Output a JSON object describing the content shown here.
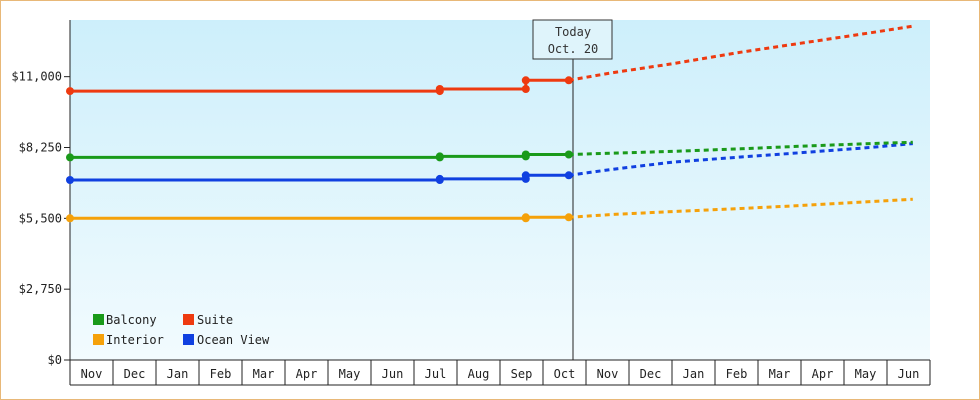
{
  "chart_data": {
    "type": "line",
    "title": "",
    "xlabel": "",
    "ylabel": "",
    "ylim": [
      0,
      13200
    ],
    "yticks": [
      "$0",
      "$2,750",
      "$5,500",
      "$8,250",
      "$11,000"
    ],
    "ytick_values": [
      0,
      2750,
      5500,
      8250,
      11000
    ],
    "months": [
      "Nov",
      "Dec",
      "Jan",
      "Feb",
      "Mar",
      "Apr",
      "May",
      "Jun",
      "Jul",
      "Aug",
      "Sep",
      "Oct",
      "Nov",
      "Dec",
      "Jan",
      "Feb",
      "Mar",
      "Apr",
      "May",
      "Jun"
    ],
    "today_marker": {
      "line1": "Today",
      "line2": "Oct. 20",
      "month_index": 11.0
    },
    "grid": false,
    "legend_position": "bottom-left",
    "series": [
      {
        "name": "Balcony",
        "color": "#1a9a1a",
        "actual": [
          [
            0,
            7866
          ],
          [
            8.6,
            7866
          ],
          [
            8.6,
            7904
          ],
          [
            10.6,
            7904
          ],
          [
            10.6,
            7980
          ],
          [
            11.6,
            7980
          ]
        ],
        "markers": [
          0,
          8.6,
          10.6,
          11.6
        ],
        "forecast": [
          [
            11.6,
            7980
          ],
          [
            12.6,
            8030
          ],
          [
            14.0,
            8100
          ],
          [
            15.6,
            8200
          ],
          [
            17.0,
            8300
          ],
          [
            18.6,
            8400
          ],
          [
            19.6,
            8450
          ]
        ]
      },
      {
        "name": "Suite",
        "color": "#ee3a10",
        "actual": [
          [
            0,
            10438
          ],
          [
            8.6,
            10438
          ],
          [
            8.6,
            10520
          ],
          [
            10.6,
            10520
          ],
          [
            10.6,
            10860
          ],
          [
            11.6,
            10860
          ]
        ],
        "markers": [
          0,
          8.6,
          10.6,
          11.6
        ],
        "forecast": [
          [
            11.6,
            10860
          ],
          [
            12.6,
            11150
          ],
          [
            14.0,
            11500
          ],
          [
            15.6,
            11950
          ],
          [
            17.0,
            12300
          ],
          [
            18.6,
            12700
          ],
          [
            19.6,
            12960
          ]
        ]
      },
      {
        "name": "Interior",
        "color": "#f5a10a",
        "actual": [
          [
            0,
            5500
          ],
          [
            10.6,
            5500
          ],
          [
            10.6,
            5540
          ],
          [
            11.6,
            5540
          ]
        ],
        "markers": [
          0,
          10.6,
          11.6
        ],
        "forecast": [
          [
            11.6,
            5540
          ],
          [
            12.6,
            5650
          ],
          [
            14.0,
            5760
          ],
          [
            15.6,
            5880
          ],
          [
            17.0,
            6000
          ],
          [
            18.6,
            6150
          ],
          [
            19.6,
            6240
          ]
        ]
      },
      {
        "name": "Ocean View",
        "color": "#1040e0",
        "actual": [
          [
            0,
            6990
          ],
          [
            8.6,
            6990
          ],
          [
            8.6,
            7030
          ],
          [
            10.6,
            7030
          ],
          [
            10.6,
            7170
          ],
          [
            11.6,
            7170
          ]
        ],
        "markers": [
          0,
          8.6,
          10.6,
          11.6
        ],
        "forecast": [
          [
            11.6,
            7170
          ],
          [
            12.6,
            7400
          ],
          [
            14.0,
            7680
          ],
          [
            15.6,
            7880
          ],
          [
            17.0,
            8050
          ],
          [
            18.6,
            8250
          ],
          [
            19.6,
            8400
          ]
        ]
      }
    ]
  }
}
